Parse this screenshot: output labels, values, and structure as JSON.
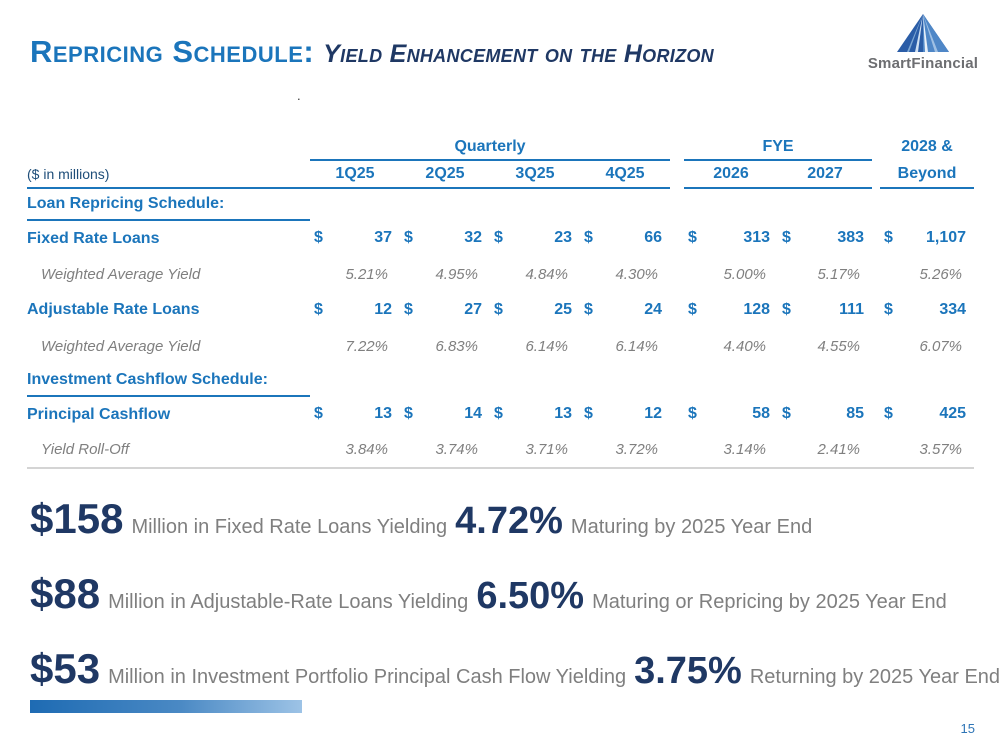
{
  "header": {
    "title_main": "Repricing Schedule:",
    "title_sub": "Yield Enhancement on the Horizon",
    "logo_text": "SmartFinancial"
  },
  "stray_dot": ".",
  "table": {
    "units_label": "($ in millions)",
    "group_headers": {
      "quarterly": "Quarterly",
      "fye": "FYE",
      "beyond_line1": "2028 &"
    },
    "column_headers": [
      "1Q25",
      "2Q25",
      "3Q25",
      "4Q25",
      "2026",
      "2027",
      "Beyond"
    ],
    "currency_symbol": "$",
    "rows": [
      {
        "label": "Loan Repricing Schedule:",
        "type": "section"
      },
      {
        "label": "Fixed Rate Loans",
        "type": "currency",
        "values": [
          "37",
          "32",
          "23",
          "66",
          "313",
          "383",
          "1,107"
        ]
      },
      {
        "label": "Weighted Average Yield",
        "type": "yield",
        "values": [
          "5.21%",
          "4.95%",
          "4.84%",
          "4.30%",
          "5.00%",
          "5.17%",
          "5.26%"
        ]
      },
      {
        "label": "Adjustable Rate Loans",
        "type": "currency",
        "values": [
          "12",
          "27",
          "25",
          "24",
          "128",
          "111",
          "334"
        ]
      },
      {
        "label": "Weighted Average Yield",
        "type": "yield",
        "values": [
          "7.22%",
          "6.83%",
          "6.14%",
          "6.14%",
          "4.40%",
          "4.55%",
          "6.07%"
        ]
      },
      {
        "label": "Investment Cashflow Schedule:",
        "type": "section"
      },
      {
        "label": "Principal Cashflow",
        "type": "currency",
        "values": [
          "13",
          "14",
          "13",
          "12",
          "58",
          "85",
          "425"
        ]
      },
      {
        "label": "Yield Roll-Off",
        "type": "yield",
        "values": [
          "3.84%",
          "3.74%",
          "3.71%",
          "3.72%",
          "3.14%",
          "2.41%",
          "3.57%"
        ]
      }
    ]
  },
  "summaries": [
    {
      "amount": "$158",
      "text1": "Million in Fixed Rate Loans Yielding",
      "pct": "4.72%",
      "text2": "Maturing by 2025 Year End"
    },
    {
      "amount": "$88",
      "text1": "Million in Adjustable-Rate Loans Yielding",
      "pct": "6.50%",
      "text2": "Maturing or Repricing by 2025 Year End"
    },
    {
      "amount": "$53",
      "text1": "Million in Investment Portfolio Principal Cash Flow Yielding",
      "pct": "3.75%",
      "text2": "Returning by 2025 Year End"
    }
  ],
  "footer": {
    "page_number": "15"
  },
  "colors": {
    "accent_blue": "#1B75BB",
    "navy": "#1F3864",
    "text_gray": "#7F7F7F",
    "divider_gray": "#D4D4D4",
    "page_number_blue": "#2E75B6",
    "logo_text_gray": "#6D6E71",
    "logo_triangle_dark": "#2B5DA7",
    "logo_triangle_light": "#4F87C7",
    "footer_bar_start": "#1E6BB3",
    "footer_bar_end": "#9DC3E6"
  }
}
